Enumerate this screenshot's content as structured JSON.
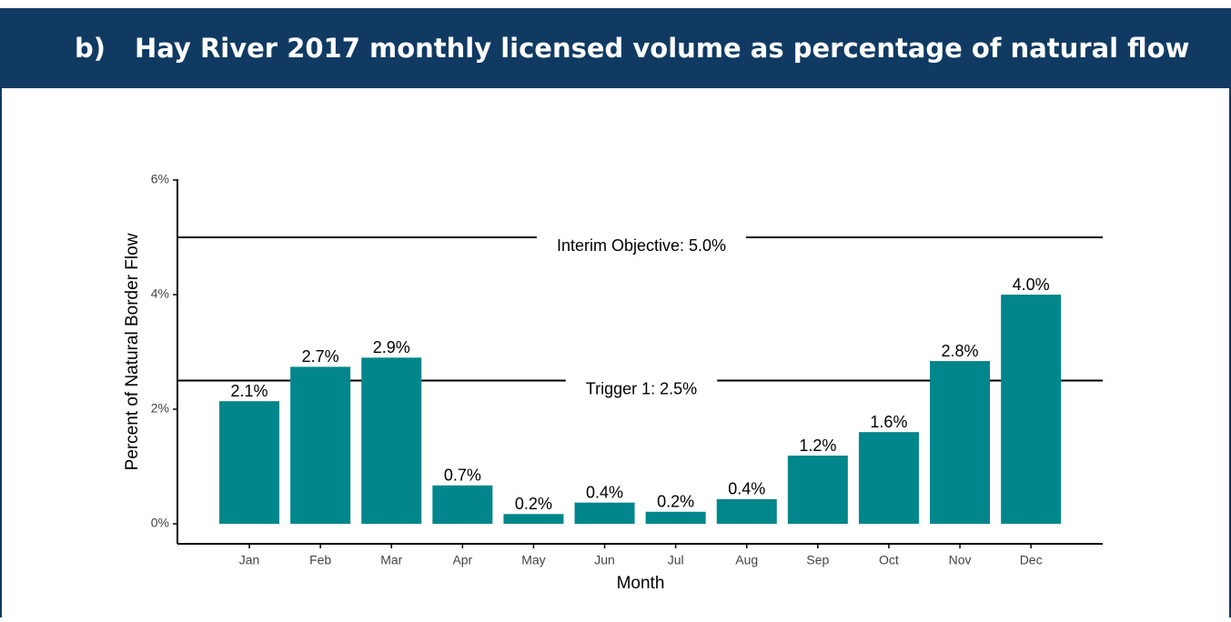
{
  "chart_data": {
    "type": "bar",
    "panel_label": "b)",
    "title": "Hay River 2017 monthly licensed volume as percentage of natural flow",
    "x_label": "Month",
    "y_label": "Percent of Natural Border Flow",
    "categories": [
      "Jan",
      "Feb",
      "Mar",
      "Apr",
      "May",
      "Jun",
      "Jul",
      "Aug",
      "Sep",
      "Oct",
      "Nov",
      "Dec"
    ],
    "values": [
      2.14,
      2.74,
      2.9,
      0.67,
      0.17,
      0.37,
      0.21,
      0.43,
      1.19,
      1.6,
      2.84,
      4.0
    ],
    "value_labels": [
      "2.1%",
      "2.7%",
      "2.9%",
      "0.7%",
      "0.2%",
      "0.4%",
      "0.2%",
      "0.4%",
      "1.2%",
      "1.6%",
      "2.8%",
      "4.0%"
    ],
    "color": "#00868b",
    "ylim": [
      0,
      6
    ],
    "yticks": [
      {
        "value": 0,
        "label": "0%"
      },
      {
        "value": 2,
        "label": "2%"
      },
      {
        "value": 4,
        "label": "4%"
      },
      {
        "value": 6,
        "label": "6%"
      }
    ],
    "reference_lines": [
      {
        "value": 5.0,
        "label": "Interim Objective: 5.0%"
      },
      {
        "value": 2.5,
        "label": "Trigger 1: 2.5%"
      }
    ]
  }
}
